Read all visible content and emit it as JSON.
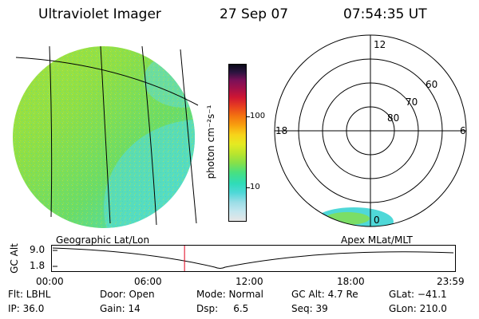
{
  "header": {
    "instrument": "Ultraviolet Imager",
    "date": "27 Sep 07",
    "time": "07:54:35 UT"
  },
  "colorbar": {
    "unit_label": "photon cm⁻²s⁻¹",
    "ticks": [
      "100",
      "10"
    ],
    "colors": [
      "#e6e6e6",
      "#c4e6ee",
      "#9adde6",
      "#4fd8d8",
      "#2fdcb8",
      "#48e080",
      "#86e04a",
      "#b9e52e",
      "#e4ea22",
      "#f7d41a",
      "#f8a20f",
      "#f37410",
      "#e8411f",
      "#cf1633",
      "#a0104a",
      "#7a1058",
      "#2c1440",
      "#0a0a18"
    ]
  },
  "polar_plot": {
    "mlt_labels": [
      "12",
      "18",
      "6",
      "0"
    ],
    "lat_labels": [
      "60",
      "70",
      "80"
    ]
  },
  "timeline": {
    "ylabel": "GC Alt",
    "y_ticks": [
      "9.0",
      "1.8"
    ],
    "left_caption": "Geographic Lat/Lon",
    "right_caption": "Apex MLat/MLT",
    "x_ticks": [
      "00:00",
      "06:00",
      "12:00",
      "18:00",
      "23:59"
    ],
    "current_time_fraction": 0.329
  },
  "footer": {
    "flt": "Flt: LBHL",
    "ip": "IP: 36.0",
    "door": "Door: Open",
    "gain": "Gain: 14",
    "mode": "Mode: Normal",
    "dsp": "Dsp:     6.5",
    "gc_alt": "GC Alt: 4.7 Re",
    "seq": "Seq: 39",
    "glat": "GLat: −41.1",
    "glon": "GLon: 210.0"
  }
}
